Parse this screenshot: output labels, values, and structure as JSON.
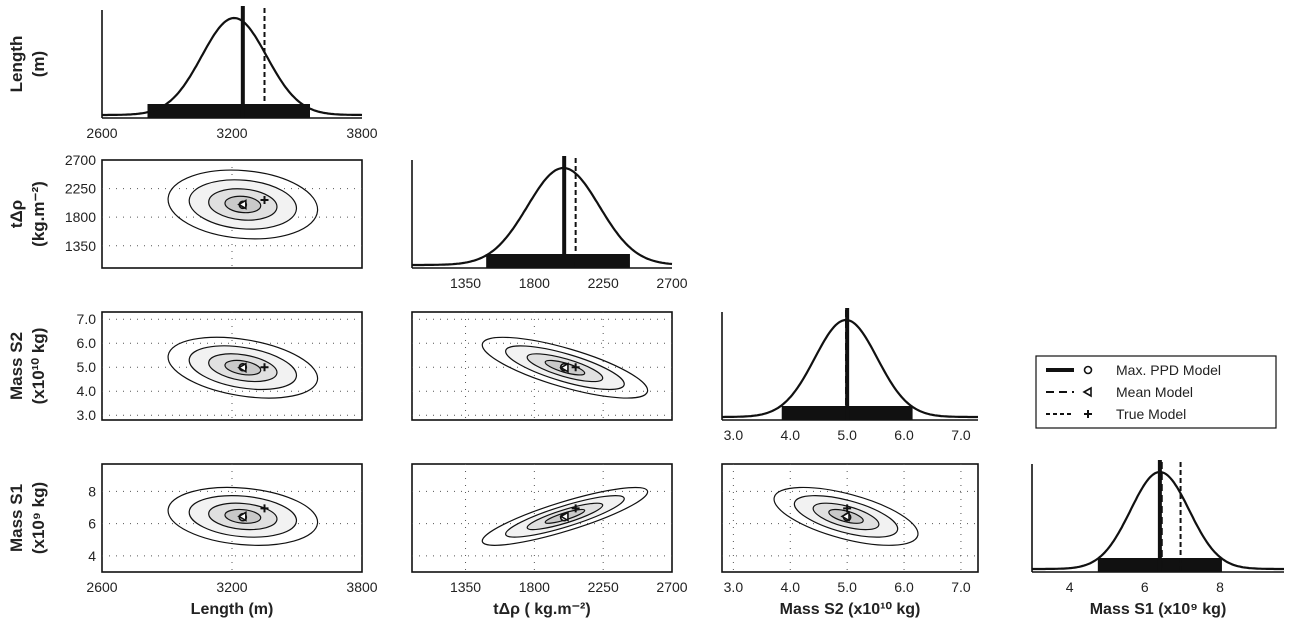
{
  "chart_data": {
    "type": "corner-plot",
    "parameters": [
      {
        "id": "length",
        "ylabel_lines": [
          "Length",
          "(m)"
        ],
        "xlabel": "Length (m)",
        "range": [
          2600,
          3800
        ],
        "ticks": [
          "2600",
          "3200",
          "3800"
        ],
        "max_ppd": 3250,
        "mean": 3250,
        "true": 3350,
        "peak": 3210,
        "sd": 150,
        "credible_interval": [
          2810,
          3560
        ]
      },
      {
        "id": "tdrho",
        "ylabel_lines": [
          "tΔρ",
          "(kg.m⁻²)"
        ],
        "xlabel": "tΔρ ( kg.m⁻²)",
        "range": [
          1000,
          2700
        ],
        "ticks": [
          "1350",
          "1800",
          "2250",
          "2700"
        ],
        "max_ppd": 1995,
        "mean": 2000,
        "true": 2070,
        "peak": 1990,
        "sd": 235,
        "credible_interval": [
          1485,
          2425
        ]
      },
      {
        "id": "mass_s2",
        "ylabel_lines": [
          "Mass S2",
          "(x10¹⁰ kg)"
        ],
        "xlabel": "Mass S2 (x10¹⁰ kg)",
        "range": [
          2.8,
          7.3
        ],
        "ticks": [
          "3.0",
          "4.0",
          "5.0",
          "6.0",
          "7.0"
        ],
        "max_ppd": 5.0,
        "mean": 4.98,
        "true": 5.0,
        "peak": 4.98,
        "sd": 0.55,
        "credible_interval": [
          3.85,
          6.15
        ]
      },
      {
        "id": "mass_s1",
        "ylabel_lines": [
          "Mass S1",
          "(x10⁹ kg)"
        ],
        "xlabel": "Mass S1 (x10⁹ kg)",
        "range": [
          3,
          9.7
        ],
        "ticks": [
          "4",
          "6",
          "8"
        ],
        "max_ppd": 6.4,
        "mean": 6.45,
        "true": 6.95,
        "peak": 6.4,
        "sd": 0.78,
        "credible_interval": [
          4.75,
          8.05
        ]
      }
    ],
    "pair_plots": [
      {
        "x": "length",
        "y": "tdrho",
        "rho": -0.15,
        "extra_yticks": [
          "2700",
          "2250",
          "1800",
          "1350"
        ],
        "y_range": [
          1000,
          2700
        ]
      },
      {
        "x": "length",
        "y": "mass_s2",
        "rho": -0.35,
        "extra_yticks": [
          "7.0",
          "6.0",
          "5.0",
          "4.0",
          "3.0"
        ],
        "y_range": [
          2.8,
          7.3
        ]
      },
      {
        "x": "tdrho",
        "y": "mass_s2",
        "rho": -0.75,
        "y_range": [
          2.8,
          7.3
        ]
      },
      {
        "x": "length",
        "y": "mass_s1",
        "rho": -0.2,
        "extra_yticks": [
          "8",
          "6",
          "4"
        ],
        "y_range": [
          3,
          9.7
        ]
      },
      {
        "x": "tdrho",
        "y": "mass_s1",
        "rho": 0.85,
        "y_range": [
          3,
          9.7
        ]
      },
      {
        "x": "mass_s2",
        "y": "mass_s1",
        "rho": -0.6,
        "y_range": [
          3,
          9.7
        ]
      }
    ],
    "legend": {
      "position": "right, middle",
      "entries": [
        {
          "label": "Max. PPD Model",
          "line": "solid-thick",
          "marker": "circle"
        },
        {
          "label": "Mean Model",
          "line": "dashed",
          "marker": "left-triangle"
        },
        {
          "label": "True Model",
          "line": "dotted",
          "marker": "plus"
        }
      ]
    },
    "grid": "dotted",
    "contour_fill": "#d3d3d3"
  }
}
